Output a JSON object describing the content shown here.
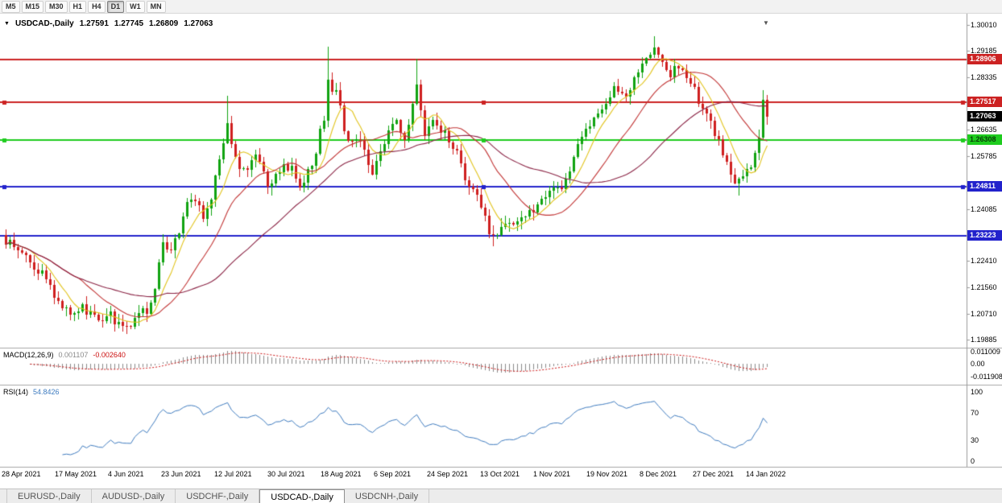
{
  "toolbar": {
    "timeframes": [
      "M5",
      "M15",
      "M30",
      "H1",
      "H4",
      "D1",
      "W1",
      "MN"
    ],
    "active_timeframe": "D1"
  },
  "icons": {
    "header_arrow": "▼",
    "shift_marker": "▼"
  },
  "chart": {
    "header": {
      "symbol": "USDCAD-,Daily",
      "open": "1.27591",
      "high": "1.27745",
      "low": "1.26809",
      "close": "1.27063"
    },
    "y_axis_ticks": [
      "1.30010",
      "1.29185",
      "1.28335",
      "1.26635",
      "1.25785",
      "1.24085",
      "1.22410",
      "1.21560",
      "1.20710",
      "1.19885"
    ],
    "x_axis_labels": [
      "28 Apr 2021",
      "17 May 2021",
      "4 Jun 2021",
      "23 Jun 2021",
      "12 Jul 2021",
      "30 Jul 2021",
      "18 Aug 2021",
      "6 Sep 2021",
      "24 Sep 2021",
      "13 Oct 2021",
      "1 Nov 2021",
      "19 Nov 2021",
      "8 Dec 2021",
      "27 Dec 2021",
      "14 Jan 2022"
    ],
    "horizontal_lines": [
      {
        "price": "1.28906",
        "value": 1.28906,
        "color": "#cc2222",
        "label_fg": "#ffffff",
        "handles": false
      },
      {
        "price": "1.27517",
        "value": 1.27517,
        "color": "#cc2222",
        "label_fg": "#ffffff",
        "handles": true
      },
      {
        "price": "1.26308",
        "value": 1.26308,
        "color": "#1ecc1e",
        "label_fg": "#063f06",
        "handles": true
      },
      {
        "price": "1.24811",
        "value": 1.24811,
        "color": "#2222cc",
        "label_fg": "#ffffff",
        "handles": true
      },
      {
        "price": "1.23223",
        "value": 1.23223,
        "color": "#2222cc",
        "label_fg": "#ffffff",
        "handles": false
      }
    ],
    "current_price": {
      "price": "1.27063",
      "value": 1.27063,
      "bg": "#000000",
      "fg": "#ffffff"
    }
  },
  "macd": {
    "label": "MACD(12,26,9)",
    "value_main": "0.001107",
    "value_signal": "-0.002640",
    "axis": [
      {
        "text": "0.011009",
        "value": 0.011009
      },
      {
        "text": "0.00",
        "value": 0
      },
      {
        "text": "-0.011908",
        "value": -0.011908
      }
    ]
  },
  "rsi": {
    "label": "RSI(14)",
    "value": "54.8426",
    "axis": [
      {
        "text": "100",
        "value": 100
      },
      {
        "text": "70",
        "value": 70
      },
      {
        "text": "30",
        "value": 30
      },
      {
        "text": "0",
        "value": 0
      }
    ]
  },
  "tabs": {
    "items": [
      "EURUSD-,Daily",
      "AUDUSD-,Daily",
      "USDCHF-,Daily",
      "USDCAD-,Daily",
      "USDCNH-,Daily"
    ],
    "active": "USDCAD-,Daily"
  },
  "chart_data": {
    "type": "candlestick",
    "symbol": "USDCAD",
    "timeframe": "Daily",
    "bars": 190,
    "last_candle": {
      "open": 1.27591,
      "high": 1.27745,
      "low": 1.26809,
      "close": 1.27063
    },
    "price_keypoints": [
      [
        0,
        1.231
      ],
      [
        3,
        1.2265
      ],
      [
        6,
        1.224
      ],
      [
        10,
        1.2185
      ],
      [
        13,
        1.211
      ],
      [
        16,
        1.207
      ],
      [
        19,
        1.2095
      ],
      [
        22,
        1.206
      ],
      [
        26,
        1.2065
      ],
      [
        29,
        1.2025
      ],
      [
        31,
        1.2035
      ],
      [
        33,
        1.208
      ],
      [
        35,
        1.207
      ],
      [
        37,
        1.216
      ],
      [
        39,
        1.2295
      ],
      [
        41,
        1.228
      ],
      [
        43,
        1.233
      ],
      [
        45,
        1.242
      ],
      [
        47,
        1.2445
      ],
      [
        49,
        1.2385
      ],
      [
        51,
        1.245
      ],
      [
        53,
        1.2555
      ],
      [
        55,
        1.269
      ],
      [
        56,
        1.2615
      ],
      [
        58,
        1.2545
      ],
      [
        60,
        1.253
      ],
      [
        62,
        1.258
      ],
      [
        64,
        1.252
      ],
      [
        65,
        1.2475
      ],
      [
        67,
        1.253
      ],
      [
        69,
        1.255
      ],
      [
        71,
        1.2535
      ],
      [
        73,
        1.249
      ],
      [
        75,
        1.2525
      ],
      [
        77,
        1.26
      ],
      [
        79,
        1.2705
      ],
      [
        80,
        1.281
      ],
      [
        82,
        1.279
      ],
      [
        84,
        1.2665
      ],
      [
        86,
        1.262
      ],
      [
        88,
        1.2645
      ],
      [
        90,
        1.2565
      ],
      [
        91,
        1.2535
      ],
      [
        93,
        1.26
      ],
      [
        95,
        1.2655
      ],
      [
        97,
        1.269
      ],
      [
        99,
        1.2635
      ],
      [
        101,
        1.275
      ],
      [
        102,
        1.2815
      ],
      [
        104,
        1.266
      ],
      [
        106,
        1.2685
      ],
      [
        108,
        1.2665
      ],
      [
        110,
        1.264
      ],
      [
        112,
        1.259
      ],
      [
        114,
        1.2505
      ],
      [
        116,
        1.2465
      ],
      [
        117,
        1.244
      ],
      [
        119,
        1.2375
      ],
      [
        121,
        1.231
      ],
      [
        123,
        1.2345
      ],
      [
        125,
        1.237
      ],
      [
        127,
        1.2365
      ],
      [
        129,
        1.239
      ],
      [
        131,
        1.2405
      ],
      [
        133,
        1.244
      ],
      [
        135,
        1.2455
      ],
      [
        137,
        1.247
      ],
      [
        139,
        1.2505
      ],
      [
        141,
        1.257
      ],
      [
        143,
        1.264
      ],
      [
        145,
        1.269
      ],
      [
        147,
        1.273
      ],
      [
        149,
        1.2745
      ],
      [
        151,
        1.282
      ],
      [
        153,
        1.2765
      ],
      [
        155,
        1.28
      ],
      [
        157,
        1.285
      ],
      [
        159,
        1.289
      ],
      [
        161,
        1.293
      ],
      [
        163,
        1.2875
      ],
      [
        165,
        1.284
      ],
      [
        167,
        1.287
      ],
      [
        169,
        1.2815
      ],
      [
        171,
        1.2785
      ],
      [
        173,
        1.274
      ],
      [
        175,
        1.269
      ],
      [
        177,
        1.2625
      ],
      [
        179,
        1.2545
      ],
      [
        181,
        1.249
      ],
      [
        182,
        1.2505
      ],
      [
        184,
        1.2535
      ],
      [
        186,
        1.2575
      ],
      [
        187,
        1.2645
      ],
      [
        188,
        1.27591
      ],
      [
        189,
        1.27063
      ]
    ],
    "wick_overrides": [
      {
        "bar": 30,
        "low": 1.2006
      },
      {
        "bar": 55,
        "high": 1.2772
      },
      {
        "bar": 80,
        "high": 1.2932
      },
      {
        "bar": 102,
        "high": 1.2893
      },
      {
        "bar": 121,
        "low": 1.2288
      },
      {
        "bar": 161,
        "high": 1.2966
      },
      {
        "bar": 182,
        "low": 1.2452
      }
    ],
    "ma_lines": [
      {
        "period": 7,
        "color": "#e2c41c"
      },
      {
        "period": 19,
        "color": "#c23535"
      },
      {
        "period": 41,
        "color": "#8b2445"
      }
    ],
    "colors": {
      "up": "#11a311",
      "down": "#cf1f1f",
      "macd_hist": "#8a8a8a",
      "macd_signal": "#cc1111",
      "rsi": "#3f7cc0",
      "separator": "#a8a8a8",
      "axis_line": "#9a9a9a"
    },
    "y_axis_range_anchor": {
      "price_top": 1.3001,
      "price_bottom": 1.19885
    }
  }
}
